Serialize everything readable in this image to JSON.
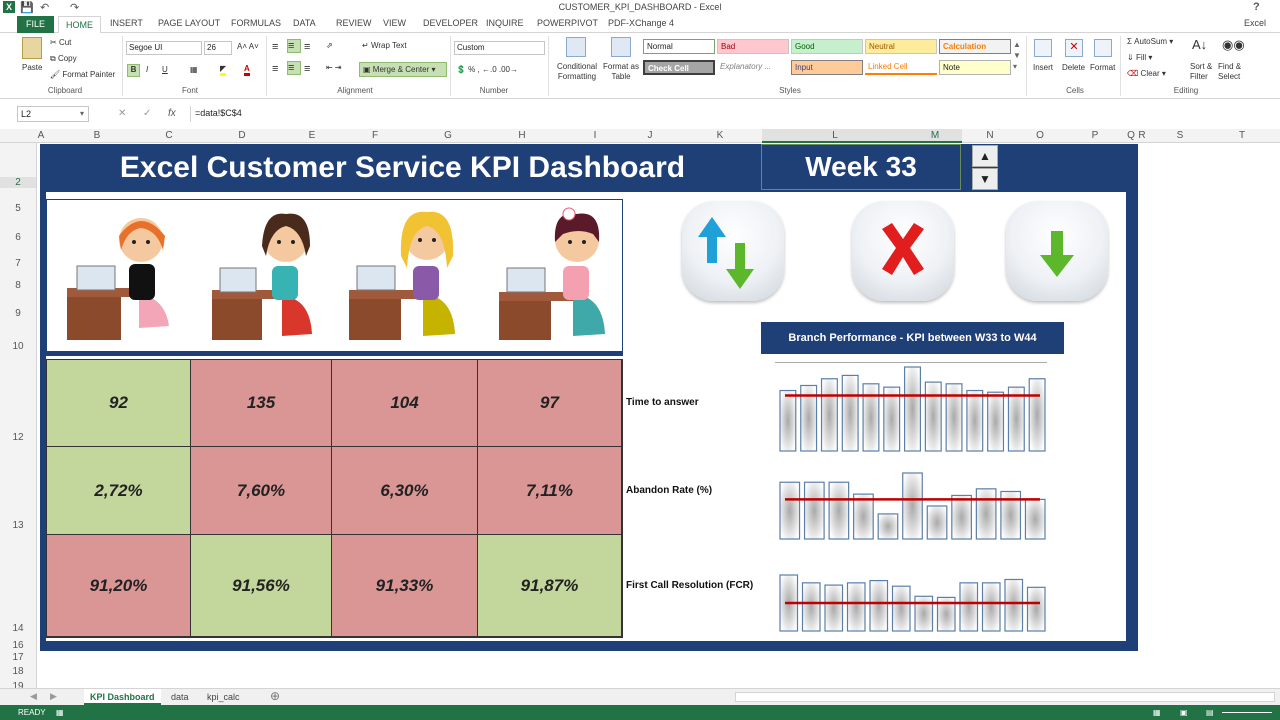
{
  "window": {
    "title": "CUSTOMER_KPI_DASHBOARD - Excel",
    "user": "Excel",
    "help": "?"
  },
  "ribbon_tabs": [
    "FILE",
    "HOME",
    "INSERT",
    "PAGE LAYOUT",
    "FORMULAS",
    "DATA",
    "REVIEW",
    "VIEW",
    "DEVELOPER",
    "INQUIRE",
    "POWERPIVOT",
    "PDF-XChange 4"
  ],
  "clipboard": {
    "paste": "Paste",
    "cut": "Cut",
    "copy": "Copy",
    "format_painter": "Format Painter",
    "label": "Clipboard"
  },
  "font": {
    "name": "Segoe UI",
    "size": "26",
    "label": "Font",
    "bold": "B",
    "italic": "I",
    "underline": "U"
  },
  "alignment": {
    "wrap": "Wrap Text",
    "merge": "Merge & Center",
    "label": "Alignment"
  },
  "number": {
    "format": "Custom",
    "label": "Number"
  },
  "styles": {
    "label": "Styles",
    "conditional": "Conditional Formatting",
    "format_table": "Format as Table",
    "cells": [
      {
        "name": "Normal",
        "bg": "#ffffff",
        "fg": "#000000"
      },
      {
        "name": "Bad",
        "bg": "#ffc7ce",
        "fg": "#9c0006"
      },
      {
        "name": "Good",
        "bg": "#c6efce",
        "fg": "#006100"
      },
      {
        "name": "Neutral",
        "bg": "#ffeb9c",
        "fg": "#9c5700"
      },
      {
        "name": "Calculation",
        "bg": "#f2f2f2",
        "fg": "#fa7d00"
      },
      {
        "name": "Check Cell",
        "bg": "#a5a5a5",
        "fg": "#ffffff"
      },
      {
        "name": "Explanatory ...",
        "bg": "#ffffff",
        "fg": "#7f7f7f"
      },
      {
        "name": "Input",
        "bg": "#ffcc99",
        "fg": "#3f3f76"
      },
      {
        "name": "Linked Cell",
        "bg": "#ffffff",
        "fg": "#fa7d00"
      },
      {
        "name": "Note",
        "bg": "#ffffcc",
        "fg": "#000000"
      }
    ]
  },
  "cells_group": {
    "insert": "Insert",
    "delete": "Delete",
    "format": "Format",
    "label": "Cells"
  },
  "editing": {
    "autosum": "AutoSum",
    "fill": "Fill",
    "clear": "Clear",
    "sort": "Sort & Filter",
    "find": "Find & Select",
    "label": "Editing"
  },
  "formula_bar": {
    "name_box": "L2",
    "formula": "=data!$C$4",
    "fx": "fx"
  },
  "columns": [
    "A",
    "B",
    "C",
    "D",
    "E",
    "F",
    "G",
    "H",
    "I",
    "J",
    "K",
    "L",
    "M",
    "N",
    "O",
    "P",
    "Q",
    "R",
    "S",
    "T"
  ],
  "rows": [
    "2",
    "5",
    "6",
    "7",
    "8",
    "9",
    "10",
    "12",
    "13",
    "14",
    "16",
    "17",
    "18",
    "19"
  ],
  "dashboard": {
    "title": "Excel Customer Service KPI Dashboard",
    "week": "Week 33",
    "branch_title": "Branch Performance - KPI between W33 to W44",
    "kpi_labels": [
      "Time to answer",
      "Abandon Rate (%)",
      "First Call Resolution (FCR)"
    ],
    "kpi_rows": [
      [
        {
          "v": "92",
          "c": "green"
        },
        {
          "v": "135",
          "c": "red"
        },
        {
          "v": "104",
          "c": "red"
        },
        {
          "v": "97",
          "c": "red"
        }
      ],
      [
        {
          "v": "2,72%",
          "c": "green"
        },
        {
          "v": "7,60%",
          "c": "red"
        },
        {
          "v": "6,30%",
          "c": "red"
        },
        {
          "v": "7,11%",
          "c": "red"
        }
      ],
      [
        {
          "v": "91,20%",
          "c": "red"
        },
        {
          "v": "91,56%",
          "c": "green"
        },
        {
          "v": "91,33%",
          "c": "red"
        },
        {
          "v": "91,87%",
          "c": "green"
        }
      ]
    ],
    "sparklines": [
      {
        "bars": [
          0.72,
          0.78,
          0.86,
          0.9,
          0.8,
          0.76,
          1.0,
          0.82,
          0.8,
          0.72,
          0.7,
          0.76,
          0.86
        ],
        "target": 0.66
      },
      {
        "bars": [
          0.86,
          0.86,
          0.86,
          0.68,
          0.38,
          1.0,
          0.5,
          0.66,
          0.76,
          0.72,
          0.6
        ],
        "target": 0.6
      },
      {
        "bars": [
          1.0,
          0.86,
          0.82,
          0.86,
          0.9,
          0.8,
          0.62,
          0.6,
          0.86,
          0.86,
          0.92,
          0.78
        ],
        "target": 0.5
      }
    ]
  },
  "sheet_tabs": [
    "KPI Dashboard",
    "data",
    "kpi_calc"
  ],
  "status": {
    "ready": "READY"
  }
}
